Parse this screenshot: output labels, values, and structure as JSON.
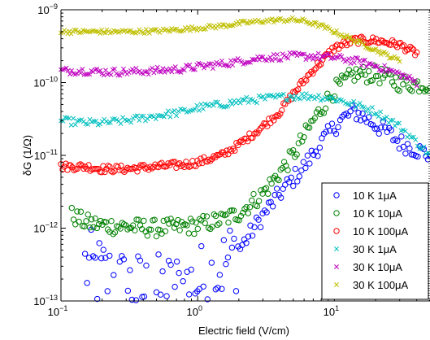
{
  "chart_data": {
    "type": "scatter",
    "xlabel": "Electric field (V/cm)",
    "ylabel": "δG (1/Ω)",
    "x_scale": "log",
    "y_scale": "log",
    "xlim": [
      0.1,
      50
    ],
    "ylim": [
      1e-13,
      1e-09
    ],
    "x_ticks": [
      {
        "value": 0.1,
        "base": "10",
        "exp": "−1"
      },
      {
        "value": 1,
        "base": "10",
        "exp": "0"
      },
      {
        "value": 10,
        "base": "10",
        "exp": "1"
      }
    ],
    "y_ticks": [
      {
        "value": 1e-13,
        "base": "10",
        "exp": "−13"
      },
      {
        "value": 1e-12,
        "base": "10",
        "exp": "−12"
      },
      {
        "value": 1e-11,
        "base": "10",
        "exp": "−11"
      },
      {
        "value": 1e-10,
        "base": "10",
        "exp": "−10"
      },
      {
        "value": 1e-09,
        "base": "10",
        "exp": "−9"
      }
    ],
    "legend_position": "bottom-right",
    "grid": false,
    "series": [
      {
        "name": "10 K 1μA",
        "marker": "circle",
        "color": "#0000ff",
        "x": [
          0.15,
          0.3,
          0.5,
          0.8,
          1.2,
          2,
          3,
          4,
          6,
          8,
          11,
          14,
          18,
          25,
          30,
          40,
          50
        ],
        "y": [
          3e-13,
          1.5e-13,
          1.3e-13,
          1.5e-13,
          2e-13,
          5e-13,
          1.5e-12,
          3e-12,
          7e-12,
          1.5e-11,
          3e-11,
          4e-11,
          3e-11,
          2e-11,
          1.5e-11,
          1.2e-11,
          1e-11
        ]
      },
      {
        "name": "10 K 10μA",
        "marker": "circle",
        "color": "#008000",
        "x": [
          0.12,
          0.15,
          0.2,
          0.3,
          0.5,
          0.8,
          1,
          1.5,
          2,
          3,
          5,
          7,
          10,
          14,
          20,
          30,
          40,
          50
        ],
        "y": [
          1.5e-12,
          1.2e-12,
          1.1e-12,
          1.05e-12,
          1e-12,
          1.05e-12,
          1.1e-12,
          1.3e-12,
          1.6e-12,
          3e-12,
          1e-11,
          3e-11,
          8e-11,
          1.3e-10,
          1.3e-10,
          1e-10,
          9.5e-11,
          9.5e-11
        ]
      },
      {
        "name": "10 K 100μA",
        "marker": "circle",
        "color": "#ff0000",
        "x": [
          0.1,
          0.15,
          0.2,
          0.3,
          0.5,
          0.8,
          1,
          1.5,
          2,
          3,
          4,
          5,
          7,
          10,
          14,
          20,
          30,
          40
        ],
        "y": [
          7e-12,
          7e-12,
          6.5e-12,
          6.5e-12,
          7e-12,
          7.5e-12,
          8e-12,
          1e-11,
          1.4e-11,
          2.5e-11,
          4e-11,
          7e-11,
          1.5e-10,
          3e-10,
          3.8e-10,
          3.8e-10,
          3.3e-10,
          2.5e-10
        ]
      },
      {
        "name": "30 K 1μA",
        "marker": "x",
        "color": "#00bfbf",
        "x": [
          0.1,
          0.15,
          0.2,
          0.3,
          0.5,
          0.8,
          1,
          1.5,
          2,
          3,
          5,
          7,
          10,
          14,
          20,
          30,
          40,
          50
        ],
        "y": [
          3e-11,
          2.8e-11,
          2.8e-11,
          3e-11,
          3.5e-11,
          4e-11,
          4.5e-11,
          5e-11,
          5.5e-11,
          6e-11,
          6.5e-11,
          6.5e-11,
          6e-11,
          5e-11,
          4e-11,
          2.5e-11,
          1.5e-11,
          1e-11
        ]
      },
      {
        "name": "30 K 10μA",
        "marker": "x",
        "color": "#bf00bf",
        "x": [
          0.1,
          0.15,
          0.2,
          0.3,
          0.5,
          0.8,
          1,
          1.5,
          2,
          3,
          5,
          7,
          10,
          14,
          20,
          30,
          40
        ],
        "y": [
          1.45e-10,
          1.45e-10,
          1.4e-10,
          1.4e-10,
          1.45e-10,
          1.55e-10,
          1.65e-10,
          1.8e-10,
          1.95e-10,
          2.2e-10,
          2.3e-10,
          2.3e-10,
          2.2e-10,
          2e-10,
          1.7e-10,
          1.3e-10,
          1e-10
        ]
      },
      {
        "name": "30 K 100μA",
        "marker": "x",
        "color": "#bfbf00",
        "x": [
          0.1,
          0.15,
          0.2,
          0.3,
          0.5,
          0.8,
          1,
          1.5,
          2,
          3,
          4,
          5,
          6,
          8,
          10,
          14,
          20,
          30
        ],
        "y": [
          5e-10,
          5e-10,
          5e-10,
          5e-10,
          5.1e-10,
          5.4e-10,
          5.6e-10,
          6e-10,
          6.5e-10,
          7e-10,
          7.2e-10,
          7.3e-10,
          7e-10,
          6e-10,
          5e-10,
          3.8e-10,
          2.8e-10,
          2e-10
        ]
      }
    ]
  }
}
